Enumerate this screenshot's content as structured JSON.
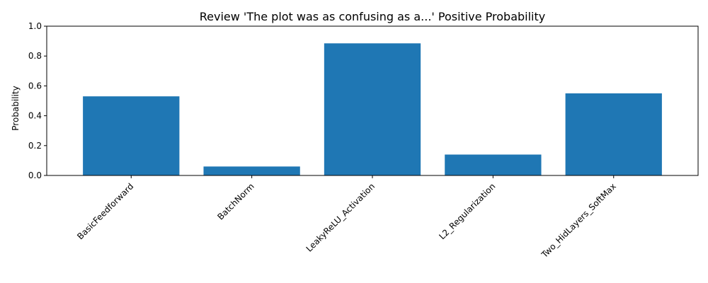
{
  "chart_data": {
    "type": "bar",
    "title": "Review 'The plot was as confusing as a...' Positive Probability",
    "xlabel": "",
    "ylabel": "Probability",
    "categories": [
      "BasicFeedforward",
      "BatchNorm",
      "LeakyReLU_Activation",
      "L2_Regularization",
      "Two_HidLayers_SoftMax"
    ],
    "values": [
      0.53,
      0.06,
      0.885,
      0.14,
      0.55
    ],
    "ylim": [
      0,
      1.0
    ],
    "yticks": [
      "0.0",
      "0.2",
      "0.4",
      "0.6",
      "0.8",
      "1.0"
    ],
    "grid": false,
    "bar_color": "#1f77b4"
  }
}
